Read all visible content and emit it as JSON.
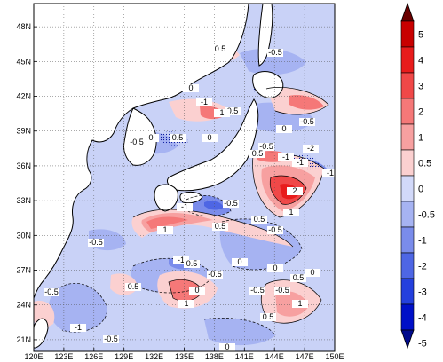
{
  "map": {
    "lon_range": [
      120,
      150
    ],
    "lat_range": [
      20,
      50
    ],
    "x_ticks": [
      "120E",
      "123E",
      "126E",
      "129E",
      "132E",
      "135E",
      "138E",
      "141E",
      "144E",
      "147E",
      "150E"
    ],
    "y_ticks": [
      "21N",
      "24N",
      "27N",
      "30N",
      "33N",
      "36N",
      "39N",
      "42N",
      "45N",
      "48N"
    ],
    "grid": "dotted",
    "land_color": "#ffffff",
    "coastline_color": "#000000"
  },
  "contour_labels": [
    {
      "text": "-0.5"
    },
    {
      "text": "0.5"
    },
    {
      "text": "0"
    },
    {
      "text": "-1"
    },
    {
      "text": "0.5"
    },
    {
      "text": "-0.5"
    },
    {
      "text": "0"
    },
    {
      "text": "0.5"
    },
    {
      "text": "0"
    },
    {
      "text": "1"
    },
    {
      "text": "-0.5"
    },
    {
      "text": "0"
    },
    {
      "text": "-0.5"
    },
    {
      "text": "-1"
    },
    {
      "text": "0.5"
    },
    {
      "text": "-1"
    },
    {
      "text": "-2"
    },
    {
      "text": "-0.5"
    },
    {
      "text": "0.5"
    },
    {
      "text": "1"
    },
    {
      "text": "2"
    },
    {
      "text": "-1"
    },
    {
      "text": "1"
    },
    {
      "text": "-0.5"
    },
    {
      "text": "0.5"
    },
    {
      "text": "-0.5"
    },
    {
      "text": "0"
    },
    {
      "text": "-1"
    },
    {
      "text": "0.5"
    },
    {
      "text": "0"
    },
    {
      "text": "0.5"
    },
    {
      "text": "-0.5"
    },
    {
      "text": "1"
    },
    {
      "text": "-0.5"
    },
    {
      "text": "0"
    },
    {
      "text": "-1"
    },
    {
      "text": "-0.5"
    },
    {
      "text": "0"
    },
    {
      "text": "0.5"
    },
    {
      "text": "1"
    },
    {
      "text": "-0.5"
    },
    {
      "text": "0"
    },
    {
      "text": "-1"
    },
    {
      "text": "0.5"
    },
    {
      "text": "-0.5"
    }
  ],
  "colorbar": {
    "labels": [
      "5",
      "4",
      "3",
      "2",
      "1",
      "0.5",
      "0",
      "-0.5",
      "-1",
      "-2",
      "-3",
      "-4",
      "-5"
    ],
    "colors": [
      "#6a0000",
      "#c80000",
      "#e81c1c",
      "#f04848",
      "#f57878",
      "#f7a0a0",
      "#fbd0d0",
      "#d2d9f9",
      "#a6b3f2",
      "#7a8ceb",
      "#4e66e4",
      "#2440dd",
      "#0010c8",
      "#000a8c"
    ]
  }
}
